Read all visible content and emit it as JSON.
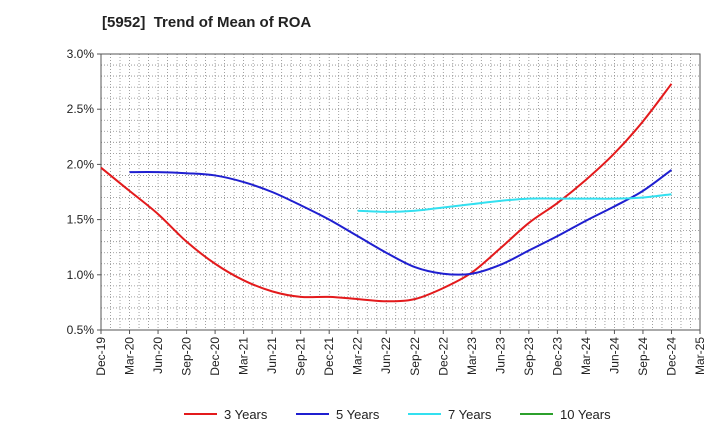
{
  "chart_data": {
    "type": "line",
    "title": "[5952]  Trend of Mean of ROA",
    "xlabel": "",
    "ylabel": "",
    "x": [
      "Dec-19",
      "Mar-20",
      "Jun-20",
      "Sep-20",
      "Dec-20",
      "Mar-21",
      "Jun-21",
      "Sep-21",
      "Dec-21",
      "Mar-22",
      "Jun-22",
      "Sep-22",
      "Dec-22",
      "Mar-23",
      "Jun-23",
      "Sep-23",
      "Dec-23",
      "Mar-24",
      "Jun-24",
      "Sep-24",
      "Dec-24",
      "Mar-25"
    ],
    "ylim": [
      0.5,
      3.0
    ],
    "yticks": [
      "0.5%",
      "1.0%",
      "1.5%",
      "2.0%",
      "2.5%",
      "3.0%"
    ],
    "grid": true,
    "legend_position": "bottom",
    "series": [
      {
        "name": "3 Years",
        "color": "#e31a1c",
        "values": [
          1.97,
          1.76,
          1.55,
          1.3,
          1.1,
          0.95,
          0.85,
          0.8,
          0.8,
          0.78,
          0.76,
          0.78,
          0.88,
          1.02,
          1.24,
          1.47,
          1.65,
          1.86,
          2.1,
          2.39,
          2.73,
          null
        ]
      },
      {
        "name": "5 Years",
        "color": "#1f1fd0",
        "values": [
          null,
          1.93,
          1.93,
          1.92,
          1.9,
          1.84,
          1.75,
          1.63,
          1.5,
          1.35,
          1.2,
          1.07,
          1.01,
          1.01,
          1.09,
          1.22,
          1.35,
          1.49,
          1.62,
          1.76,
          1.95,
          null
        ]
      },
      {
        "name": "7 Years",
        "color": "#33e0f0",
        "values": [
          null,
          null,
          null,
          null,
          null,
          null,
          null,
          null,
          null,
          1.58,
          1.57,
          1.58,
          1.61,
          1.64,
          1.67,
          1.69,
          1.69,
          1.69,
          1.69,
          1.7,
          1.73,
          null
        ]
      },
      {
        "name": "10 Years",
        "color": "#2ca02c",
        "values": [
          null,
          null,
          null,
          null,
          null,
          null,
          null,
          null,
          null,
          null,
          null,
          null,
          null,
          null,
          null,
          null,
          null,
          null,
          null,
          null,
          null,
          null
        ]
      }
    ]
  }
}
